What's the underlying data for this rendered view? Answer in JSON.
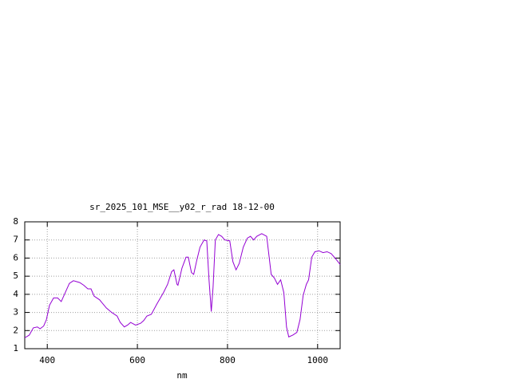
{
  "chart_data": {
    "type": "line",
    "title": "sr_2025_101_MSE__y02_r_rad 18-12-00",
    "x_label": "nm",
    "xlim": [
      350,
      1050
    ],
    "xticks": [
      400,
      600,
      800,
      1000
    ],
    "ylim": [
      1,
      8
    ],
    "yticks": [
      1,
      2,
      3,
      4,
      5,
      6,
      7,
      8
    ],
    "grid": true,
    "series": [
      {
        "color": "#9400d3",
        "x": [
          350,
          360,
          369,
          378,
          384,
          392,
          398,
          405,
          414,
          423,
          431,
          440,
          449,
          458,
          472,
          481,
          490,
          497,
          504,
          516,
          531,
          543,
          555,
          562,
          571,
          578,
          585,
          596,
          607,
          614,
          621,
          631,
          644,
          658,
          667,
          676,
          681,
          688,
          690,
          699,
          708,
          713,
          720,
          725,
          732,
          739,
          748,
          754,
          759,
          764,
          768,
          773,
          780,
          787,
          794,
          805,
          812,
          819,
          826,
          835,
          844,
          851,
          858,
          865,
          876,
          887,
          892,
          897,
          904,
          911,
          918,
          925,
          931,
          936,
          945,
          954,
          961,
          968,
          975,
          980,
          987,
          994,
          1003,
          1012,
          1021,
          1030,
          1037,
          1042,
          1050
        ],
        "values": [
          1.6,
          1.75,
          2.15,
          2.2,
          2.1,
          2.25,
          2.6,
          3.4,
          3.8,
          3.8,
          3.6,
          4.1,
          4.6,
          4.75,
          4.65,
          4.5,
          4.3,
          4.3,
          3.9,
          3.7,
          3.25,
          3.0,
          2.8,
          2.45,
          2.2,
          2.3,
          2.45,
          2.3,
          2.4,
          2.55,
          2.8,
          2.9,
          3.5,
          4.1,
          4.55,
          5.25,
          5.35,
          4.55,
          4.5,
          5.45,
          6.05,
          6.05,
          5.2,
          5.1,
          5.9,
          6.6,
          7.0,
          6.95,
          4.8,
          3.05,
          4.4,
          7.0,
          7.3,
          7.2,
          7.0,
          6.95,
          5.8,
          5.35,
          5.7,
          6.6,
          7.1,
          7.2,
          7.0,
          7.2,
          7.35,
          7.2,
          6.15,
          5.1,
          4.9,
          4.55,
          4.8,
          4.1,
          2.2,
          1.65,
          1.75,
          1.9,
          2.6,
          3.95,
          4.55,
          4.8,
          6.05,
          6.35,
          6.4,
          6.3,
          6.35,
          6.25,
          6.05,
          5.9,
          5.65
        ]
      }
    ]
  }
}
